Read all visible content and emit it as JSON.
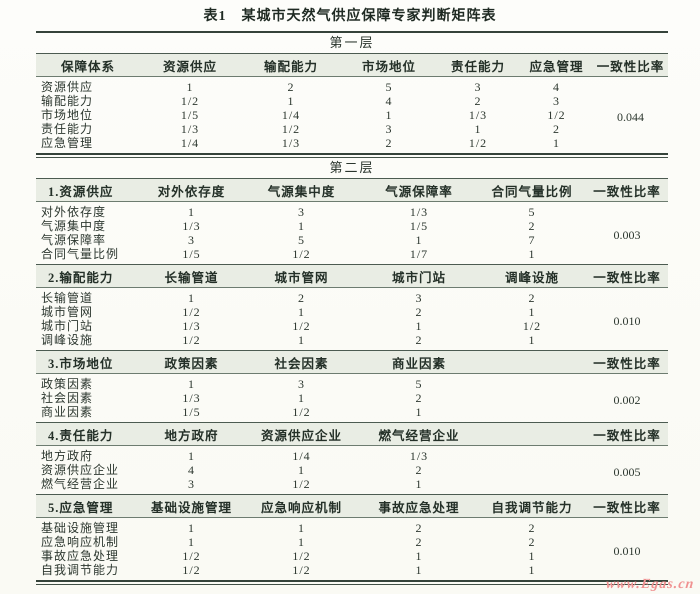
{
  "page": {
    "title": "表1　某城市天然气供应保障专家判断矩阵表",
    "watermark": "www.Egas.cn"
  },
  "layer1": {
    "band_label": "第一层",
    "header": [
      "保障体系",
      "资源供应",
      "输配能力",
      "市场地位",
      "责任能力",
      "应急管理",
      "一致性比率"
    ],
    "rows": [
      {
        "label": "资源供应",
        "values": [
          "1",
          "2",
          "5",
          "3",
          "4"
        ]
      },
      {
        "label": "输配能力",
        "values": [
          "1/2",
          "1",
          "4",
          "2",
          "3"
        ]
      },
      {
        "label": "市场地位",
        "values": [
          "1/5",
          "1/4",
          "1",
          "1/3",
          "1/2"
        ]
      },
      {
        "label": "责任能力",
        "values": [
          "1/3",
          "1/2",
          "3",
          "1",
          "2"
        ]
      },
      {
        "label": "应急管理",
        "values": [
          "1/4",
          "1/3",
          "2",
          "1/2",
          "1"
        ]
      }
    ],
    "consistency_ratio": "0.044"
  },
  "layer2": {
    "band_label": "第二层",
    "cr_label": "一致性比率",
    "sections": [
      {
        "title": "1.资源供应",
        "criteria": [
          "对外依存度",
          "气源集中度",
          "气源保障率",
          "合同气量比例"
        ],
        "rows": [
          {
            "label": "对外依存度",
            "values": [
              "1",
              "3",
              "1/3",
              "5"
            ]
          },
          {
            "label": "气源集中度",
            "values": [
              "1/3",
              "1",
              "1/5",
              "2"
            ]
          },
          {
            "label": "气源保障率",
            "values": [
              "3",
              "5",
              "1",
              "7"
            ]
          },
          {
            "label": "合同气量比例",
            "values": [
              "1/5",
              "1/2",
              "1/7",
              "1"
            ]
          }
        ],
        "consistency_ratio": "0.003"
      },
      {
        "title": "2.输配能力",
        "criteria": [
          "长输管道",
          "城市管网",
          "城市门站",
          "调峰设施"
        ],
        "rows": [
          {
            "label": "长输管道",
            "values": [
              "1",
              "2",
              "3",
              "2"
            ]
          },
          {
            "label": "城市管网",
            "values": [
              "1/2",
              "1",
              "2",
              "1"
            ]
          },
          {
            "label": "城市门站",
            "values": [
              "1/3",
              "1/2",
              "1",
              "1/2"
            ]
          },
          {
            "label": "调峰设施",
            "values": [
              "1/2",
              "1",
              "2",
              "1"
            ]
          }
        ],
        "consistency_ratio": "0.010"
      },
      {
        "title": "3.市场地位",
        "criteria": [
          "政策因素",
          "社会因素",
          "商业因素"
        ],
        "rows": [
          {
            "label": "政策因素",
            "values": [
              "1",
              "3",
              "5"
            ]
          },
          {
            "label": "社会因素",
            "values": [
              "1/3",
              "1",
              "2"
            ]
          },
          {
            "label": "商业因素",
            "values": [
              "1/5",
              "1/2",
              "1"
            ]
          }
        ],
        "consistency_ratio": "0.002"
      },
      {
        "title": "4.责任能力",
        "criteria": [
          "地方政府",
          "资源供应企业",
          "燃气经营企业"
        ],
        "rows": [
          {
            "label": "地方政府",
            "values": [
              "1",
              "1/4",
              "1/3"
            ]
          },
          {
            "label": "资源供应企业",
            "values": [
              "4",
              "1",
              "2"
            ]
          },
          {
            "label": "燃气经营企业",
            "values": [
              "3",
              "1/2",
              "1"
            ]
          }
        ],
        "consistency_ratio": "0.005"
      },
      {
        "title": "5.应急管理",
        "criteria": [
          "基础设施管理",
          "应急响应机制",
          "事故应急处理",
          "自我调节能力"
        ],
        "rows": [
          {
            "label": "基础设施管理",
            "values": [
              "1",
              "1",
              "2",
              "2"
            ]
          },
          {
            "label": "应急响应机制",
            "values": [
              "1",
              "1",
              "2",
              "2"
            ]
          },
          {
            "label": "事故应急处理",
            "values": [
              "1/2",
              "1/2",
              "1",
              "1"
            ]
          },
          {
            "label": "自我调节能力",
            "values": [
              "1/2",
              "1/2",
              "1",
              "1"
            ]
          }
        ],
        "consistency_ratio": "0.010"
      }
    ]
  }
}
